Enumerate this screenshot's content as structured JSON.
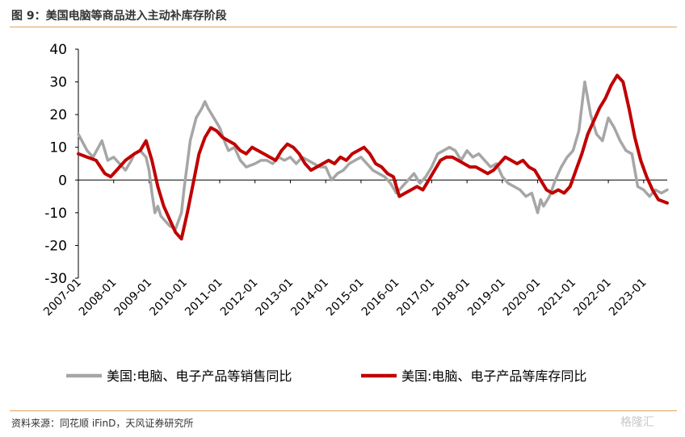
{
  "title": "图 9：美国电脑等商品进入主动补库存阶段",
  "source": "资料来源：同花顺 iFinD，天风证券研究所",
  "watermark": "格隆汇",
  "colors": {
    "sales": "#a6a6a6",
    "inventory": "#c00000",
    "rule": "#e0a060",
    "axis": "#000000",
    "text": "#333333"
  },
  "chart_data": {
    "type": "line",
    "title": "图 9：美国电脑等商品进入主动补库存阶段",
    "xlabel": "",
    "ylabel": "",
    "ylim": [
      -30,
      40
    ],
    "yticks": [
      40,
      30,
      20,
      10,
      0,
      -10,
      -20,
      -30
    ],
    "xticks": [
      "2007-01",
      "2008-01",
      "2009-01",
      "2010-01",
      "2011-01",
      "2012-01",
      "2013-01",
      "2014-01",
      "2015-01",
      "2016-01",
      "2017-01",
      "2018-01",
      "2019-01",
      "2020-01",
      "2021-01",
      "2022-01",
      "2023-01"
    ],
    "xrange": [
      "2007-01",
      "2023-09"
    ],
    "grid": false,
    "legend_position": "bottom",
    "series": [
      {
        "name": "美国:电脑、电子产品等销售同比",
        "color": "#a6a6a6",
        "points": [
          [
            "2007-01",
            14
          ],
          [
            "2007-04",
            9
          ],
          [
            "2007-06",
            7
          ],
          [
            "2007-09",
            12
          ],
          [
            "2007-11",
            6
          ],
          [
            "2008-01",
            7
          ],
          [
            "2008-03",
            5
          ],
          [
            "2008-05",
            3
          ],
          [
            "2008-07",
            6
          ],
          [
            "2008-08",
            8
          ],
          [
            "2008-10",
            9
          ],
          [
            "2008-12",
            7
          ],
          [
            "2009-01",
            3
          ],
          [
            "2009-02",
            -4
          ],
          [
            "2009-03",
            -10
          ],
          [
            "2009-04",
            -8
          ],
          [
            "2009-05",
            -11
          ],
          [
            "2009-06",
            -12
          ],
          [
            "2009-08",
            -14
          ],
          [
            "2009-10",
            -15
          ],
          [
            "2009-12",
            -10
          ],
          [
            "2010-01",
            -2
          ],
          [
            "2010-02",
            5
          ],
          [
            "2010-03",
            12
          ],
          [
            "2010-05",
            19
          ],
          [
            "2010-07",
            22
          ],
          [
            "2010-08",
            24
          ],
          [
            "2010-09",
            22
          ],
          [
            "2010-11",
            19
          ],
          [
            "2011-01",
            16
          ],
          [
            "2011-03",
            11
          ],
          [
            "2011-04",
            9
          ],
          [
            "2011-06",
            10
          ],
          [
            "2011-08",
            6
          ],
          [
            "2011-10",
            4
          ],
          [
            "2012-01",
            5
          ],
          [
            "2012-03",
            6
          ],
          [
            "2012-05",
            6
          ],
          [
            "2012-07",
            5
          ],
          [
            "2012-09",
            7
          ],
          [
            "2012-11",
            6
          ],
          [
            "2013-01",
            7
          ],
          [
            "2013-03",
            5
          ],
          [
            "2013-05",
            7
          ],
          [
            "2013-07",
            6
          ],
          [
            "2013-09",
            5
          ],
          [
            "2013-11",
            4
          ],
          [
            "2014-01",
            4
          ],
          [
            "2014-02",
            2
          ],
          [
            "2014-03",
            0
          ],
          [
            "2014-05",
            2
          ],
          [
            "2014-07",
            3
          ],
          [
            "2014-09",
            5
          ],
          [
            "2014-11",
            6
          ],
          [
            "2015-01",
            7
          ],
          [
            "2015-03",
            5
          ],
          [
            "2015-05",
            3
          ],
          [
            "2015-07",
            2
          ],
          [
            "2015-09",
            1
          ],
          [
            "2015-11",
            -1
          ],
          [
            "2016-01",
            -4
          ],
          [
            "2016-03",
            -2
          ],
          [
            "2016-05",
            0
          ],
          [
            "2016-07",
            2
          ],
          [
            "2016-09",
            -1
          ],
          [
            "2016-11",
            1
          ],
          [
            "2017-01",
            4
          ],
          [
            "2017-03",
            8
          ],
          [
            "2017-05",
            9
          ],
          [
            "2017-07",
            10
          ],
          [
            "2017-09",
            9
          ],
          [
            "2017-11",
            6
          ],
          [
            "2018-01",
            9
          ],
          [
            "2018-03",
            7
          ],
          [
            "2018-05",
            8
          ],
          [
            "2018-07",
            6
          ],
          [
            "2018-09",
            4
          ],
          [
            "2018-11",
            5
          ],
          [
            "2019-01",
            1
          ],
          [
            "2019-03",
            -1
          ],
          [
            "2019-05",
            -2
          ],
          [
            "2019-07",
            -3
          ],
          [
            "2019-09",
            -5
          ],
          [
            "2019-11",
            -4
          ],
          [
            "2020-01",
            -10
          ],
          [
            "2020-02",
            -6
          ],
          [
            "2020-03",
            -8
          ],
          [
            "2020-05",
            -5
          ],
          [
            "2020-07",
            0
          ],
          [
            "2020-09",
            4
          ],
          [
            "2020-11",
            7
          ],
          [
            "2021-01",
            9
          ],
          [
            "2021-03",
            15
          ],
          [
            "2021-05",
            30
          ],
          [
            "2021-07",
            20
          ],
          [
            "2021-09",
            14
          ],
          [
            "2021-11",
            12
          ],
          [
            "2022-01",
            19
          ],
          [
            "2022-03",
            16
          ],
          [
            "2022-05",
            12
          ],
          [
            "2022-07",
            9
          ],
          [
            "2022-09",
            8
          ],
          [
            "2022-11",
            -2
          ],
          [
            "2023-01",
            -3
          ],
          [
            "2023-03",
            -5
          ],
          [
            "2023-05",
            -3
          ],
          [
            "2023-07",
            -4
          ],
          [
            "2023-09",
            -3
          ]
        ]
      },
      {
        "name": "美国:电脑、电子产品等库存同比",
        "color": "#c00000",
        "points": [
          [
            "2007-01",
            8
          ],
          [
            "2007-04",
            7
          ],
          [
            "2007-07",
            6
          ],
          [
            "2007-10",
            2
          ],
          [
            "2007-12",
            1
          ],
          [
            "2008-02",
            3
          ],
          [
            "2008-05",
            6
          ],
          [
            "2008-08",
            8
          ],
          [
            "2008-10",
            9
          ],
          [
            "2008-12",
            12
          ],
          [
            "2009-02",
            6
          ],
          [
            "2009-04",
            -2
          ],
          [
            "2009-06",
            -8
          ],
          [
            "2009-08",
            -12
          ],
          [
            "2009-10",
            -16
          ],
          [
            "2009-12",
            -18
          ],
          [
            "2010-02",
            -10
          ],
          [
            "2010-04",
            -1
          ],
          [
            "2010-06",
            8
          ],
          [
            "2010-08",
            13
          ],
          [
            "2010-10",
            16
          ],
          [
            "2010-12",
            15
          ],
          [
            "2011-02",
            13
          ],
          [
            "2011-04",
            12
          ],
          [
            "2011-06",
            11
          ],
          [
            "2011-08",
            9
          ],
          [
            "2011-10",
            8
          ],
          [
            "2011-12",
            10
          ],
          [
            "2012-02",
            9
          ],
          [
            "2012-04",
            8
          ],
          [
            "2012-06",
            7
          ],
          [
            "2012-08",
            6
          ],
          [
            "2012-10",
            9
          ],
          [
            "2012-12",
            11
          ],
          [
            "2013-02",
            10
          ],
          [
            "2013-04",
            8
          ],
          [
            "2013-06",
            5
          ],
          [
            "2013-08",
            3
          ],
          [
            "2013-10",
            4
          ],
          [
            "2013-12",
            5
          ],
          [
            "2014-02",
            6
          ],
          [
            "2014-04",
            5
          ],
          [
            "2014-06",
            7
          ],
          [
            "2014-08",
            6
          ],
          [
            "2014-10",
            8
          ],
          [
            "2014-12",
            9
          ],
          [
            "2015-02",
            10
          ],
          [
            "2015-04",
            8
          ],
          [
            "2015-06",
            5
          ],
          [
            "2015-08",
            4
          ],
          [
            "2015-10",
            2
          ],
          [
            "2015-12",
            1
          ],
          [
            "2016-02",
            -5
          ],
          [
            "2016-04",
            -4
          ],
          [
            "2016-06",
            -3
          ],
          [
            "2016-08",
            -2
          ],
          [
            "2016-10",
            -3
          ],
          [
            "2016-12",
            0
          ],
          [
            "2017-02",
            3
          ],
          [
            "2017-04",
            6
          ],
          [
            "2017-06",
            7
          ],
          [
            "2017-08",
            7
          ],
          [
            "2017-10",
            6
          ],
          [
            "2017-12",
            5
          ],
          [
            "2018-02",
            4
          ],
          [
            "2018-04",
            4
          ],
          [
            "2018-06",
            3
          ],
          [
            "2018-08",
            2
          ],
          [
            "2018-10",
            3
          ],
          [
            "2018-12",
            5
          ],
          [
            "2019-02",
            7
          ],
          [
            "2019-04",
            6
          ],
          [
            "2019-06",
            5
          ],
          [
            "2019-08",
            6
          ],
          [
            "2019-10",
            4
          ],
          [
            "2019-12",
            3
          ],
          [
            "2020-02",
            0
          ],
          [
            "2020-04",
            -3
          ],
          [
            "2020-06",
            -4
          ],
          [
            "2020-08",
            -3
          ],
          [
            "2020-10",
            -4
          ],
          [
            "2020-12",
            -2
          ],
          [
            "2021-02",
            3
          ],
          [
            "2021-04",
            8
          ],
          [
            "2021-06",
            14
          ],
          [
            "2021-08",
            18
          ],
          [
            "2021-10",
            22
          ],
          [
            "2021-12",
            25
          ],
          [
            "2022-02",
            29
          ],
          [
            "2022-04",
            32
          ],
          [
            "2022-06",
            30
          ],
          [
            "2022-08",
            22
          ],
          [
            "2022-10",
            13
          ],
          [
            "2022-12",
            6
          ],
          [
            "2023-02",
            1
          ],
          [
            "2023-04",
            -3
          ],
          [
            "2023-06",
            -6
          ],
          [
            "2023-09",
            -7
          ]
        ]
      }
    ]
  }
}
